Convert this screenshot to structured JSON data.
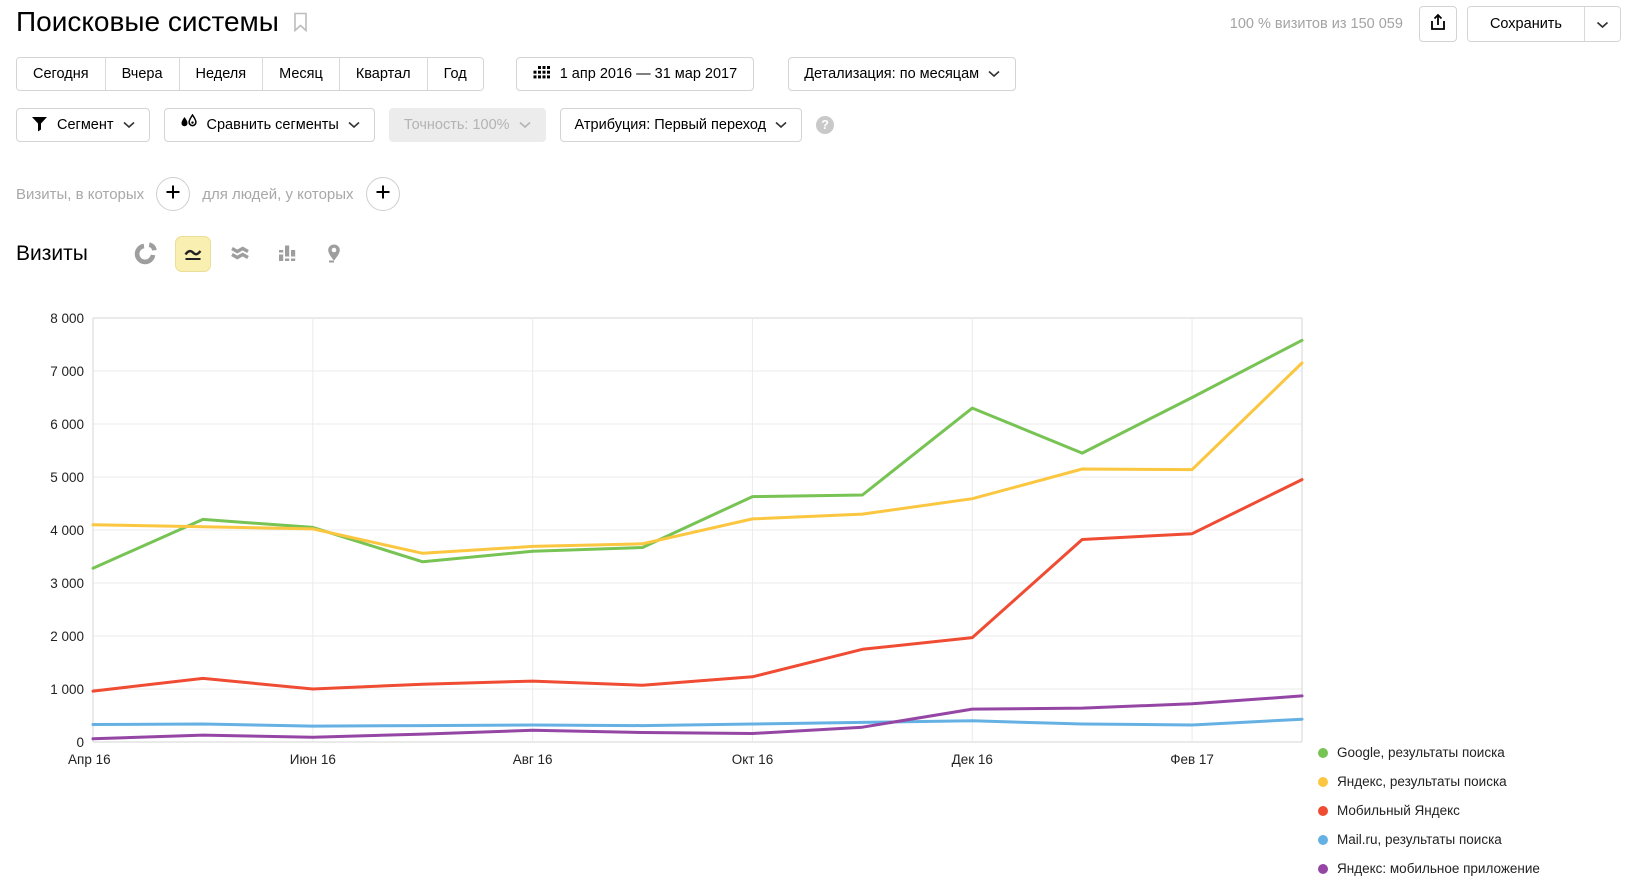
{
  "header": {
    "title": "Поисковые системы",
    "visits_summary": "100 % визитов из 150 059",
    "save_label": "Сохранить"
  },
  "toolbar": {
    "periods": [
      "Сегодня",
      "Вчера",
      "Неделя",
      "Месяц",
      "Квартал",
      "Год"
    ],
    "date_range": "1 апр 2016 — 31 мар 2017",
    "detalization_label": "Детализация: по месяцам",
    "segment_label": "Сегмент",
    "compare_segments_label": "Сравнить сегменты",
    "accuracy_label": "Точность: 100%",
    "accuracy_disabled": true,
    "attribution_label": "Атрибуция: Первый переход",
    "help_glyph": "?"
  },
  "filters": {
    "visits_condition_label": "Визиты, в которых",
    "people_condition_label": "для людей, у которых"
  },
  "metric": {
    "title": "Визиты",
    "chart_types": [
      "pie",
      "line",
      "stacked",
      "columns",
      "map"
    ],
    "selected_chart_type": "line"
  },
  "chart_data": {
    "type": "line",
    "title": "Визиты",
    "x": [
      "Апр 16",
      "Май 16",
      "Июн 16",
      "Июл 16",
      "Авг 16",
      "Сен 16",
      "Окт 16",
      "Ноя 16",
      "Дек 16",
      "Янв 17",
      "Фев 17",
      "Мар 17"
    ],
    "x_tick_labels": [
      "Апр 16",
      "Июн 16",
      "Авг 16",
      "Окт 16",
      "Дек 16",
      "Фев 17"
    ],
    "ylim": [
      0,
      8000
    ],
    "y_ticks": [
      0,
      1000,
      2000,
      3000,
      4000,
      5000,
      6000,
      7000,
      8000
    ],
    "y_tick_labels": [
      "0",
      "1 000",
      "2 000",
      "3 000",
      "4 000",
      "5 000",
      "6 000",
      "7 000",
      "8 000"
    ],
    "grid": true,
    "legend_position": "right",
    "series": [
      {
        "name": "Google, результаты поиска",
        "color": "#77c353",
        "values": [
          3280,
          4200,
          4050,
          3400,
          3600,
          3670,
          4630,
          4660,
          6300,
          5450,
          6500,
          7580
        ]
      },
      {
        "name": "Яндекс, результаты поиска",
        "color": "#fbc640",
        "values": [
          4100,
          4060,
          4020,
          3560,
          3690,
          3740,
          4210,
          4300,
          4590,
          5150,
          5140,
          7150
        ]
      },
      {
        "name": "Мобильный Яндекс",
        "color": "#ef4c33",
        "values": [
          960,
          1200,
          1000,
          1090,
          1150,
          1070,
          1230,
          1750,
          1970,
          3820,
          3930,
          4950
        ]
      },
      {
        "name": "Mail.ru, результаты поиска",
        "color": "#66b1e3",
        "values": [
          330,
          340,
          300,
          310,
          320,
          310,
          340,
          370,
          400,
          340,
          320,
          430
        ]
      },
      {
        "name": "Яндекс: мобильное приложение",
        "color": "#9546a5",
        "values": [
          60,
          130,
          90,
          150,
          220,
          180,
          160,
          280,
          620,
          640,
          720,
          870
        ]
      }
    ]
  },
  "colors": {
    "selected_icon_bg": "#f9efb0",
    "grid_line": "#ebebeb",
    "plot_border": "#d6d6d6",
    "muted_text": "#a3a3a3",
    "disabled_bg": "#ececec"
  }
}
